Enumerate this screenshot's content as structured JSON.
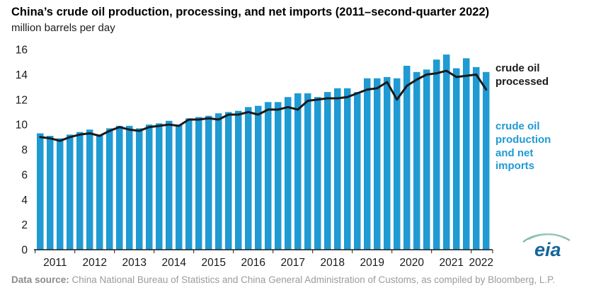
{
  "title": "China’s crude oil production, processing, and net imports (2011–second-quarter 2022)",
  "subtitle": "million barrels per day",
  "annotations": {
    "processed_label": "crude oil processed",
    "production_label": "crude oil production and net imports"
  },
  "footer": {
    "label": "Data source:",
    "text": " China National Bureau of Statistics and China General Administration of Customs, as compiled by Bloomberg, L.P."
  },
  "logo": {
    "text": "eia"
  },
  "colors": {
    "bar": "#1f9ad3",
    "line": "#1a1a1a",
    "axis": "#1a1a1a",
    "tick_text": "#1a1a1a"
  },
  "chart_data": {
    "type": "bar",
    "note": "quarterly bar series with overlaid line series",
    "title": "China’s crude oil production, processing, and net imports (2011–second-quarter 2022)",
    "ylabel": "million barrels per day",
    "ylim": [
      0,
      16
    ],
    "yticks": [
      0,
      2,
      4,
      6,
      8,
      10,
      12,
      14,
      16
    ],
    "grid": false,
    "legend_position": "right-annotations",
    "years": [
      "2011",
      "2012",
      "2013",
      "2014",
      "2015",
      "2016",
      "2017",
      "2018",
      "2019",
      "2020",
      "2021",
      "2022"
    ],
    "x_labels": [
      "2011-Q1",
      "2011-Q2",
      "2011-Q3",
      "2011-Q4",
      "2012-Q1",
      "2012-Q2",
      "2012-Q3",
      "2012-Q4",
      "2013-Q1",
      "2013-Q2",
      "2013-Q3",
      "2013-Q4",
      "2014-Q1",
      "2014-Q2",
      "2014-Q3",
      "2014-Q4",
      "2015-Q1",
      "2015-Q2",
      "2015-Q3",
      "2015-Q4",
      "2016-Q1",
      "2016-Q2",
      "2016-Q3",
      "2016-Q4",
      "2017-Q1",
      "2017-Q2",
      "2017-Q3",
      "2017-Q4",
      "2018-Q1",
      "2018-Q2",
      "2018-Q3",
      "2018-Q4",
      "2019-Q1",
      "2019-Q2",
      "2019-Q3",
      "2019-Q4",
      "2020-Q1",
      "2020-Q2",
      "2020-Q3",
      "2020-Q4",
      "2021-Q1",
      "2021-Q2",
      "2021-Q3",
      "2021-Q4",
      "2022-Q1",
      "2022-Q2"
    ],
    "series": [
      {
        "name": "crude oil production and net imports",
        "type": "bar",
        "color": "#1f9ad3",
        "values": [
          9.3,
          9.1,
          8.9,
          9.2,
          9.4,
          9.6,
          9.2,
          9.7,
          9.9,
          9.9,
          9.7,
          10.0,
          10.1,
          10.3,
          10.0,
          10.5,
          10.6,
          10.7,
          10.9,
          11.0,
          11.1,
          11.4,
          11.5,
          11.8,
          11.8,
          12.2,
          12.5,
          12.5,
          12.2,
          12.6,
          12.9,
          12.9,
          12.6,
          13.7,
          13.7,
          13.8,
          13.7,
          14.7,
          14.2,
          14.4,
          15.2,
          15.6,
          14.5,
          15.3,
          14.6,
          14.2
        ]
      },
      {
        "name": "crude oil processed",
        "type": "line",
        "color": "#1a1a1a",
        "values": [
          9.0,
          8.9,
          8.7,
          9.0,
          9.2,
          9.3,
          9.1,
          9.5,
          9.8,
          9.6,
          9.5,
          9.8,
          9.9,
          10.0,
          9.9,
          10.4,
          10.4,
          10.5,
          10.4,
          10.8,
          10.8,
          11.0,
          10.8,
          11.2,
          11.2,
          11.4,
          11.2,
          11.9,
          12.0,
          12.1,
          12.1,
          12.2,
          12.5,
          12.8,
          12.9,
          13.4,
          12.0,
          13.1,
          13.6,
          14.0,
          14.1,
          14.3,
          13.8,
          13.9,
          14.0,
          12.8
        ]
      }
    ]
  }
}
